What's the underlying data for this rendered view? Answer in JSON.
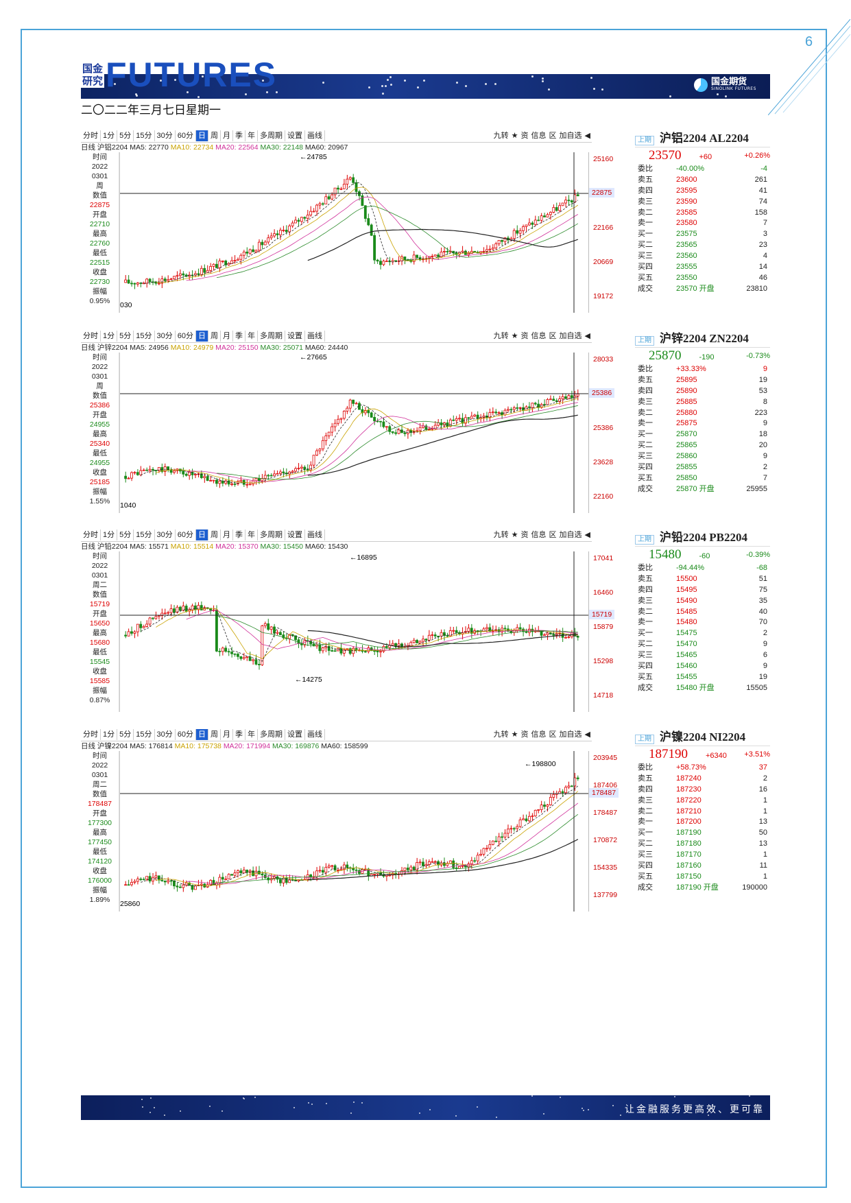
{
  "page_number": "6",
  "header": {
    "logo_cn_top": "国金",
    "logo_cn_bottom": "研究",
    "logo_en": "FUTURES",
    "brand_name": "国金期货",
    "brand_en": "SINOLINK FUTURES",
    "date": "二〇二二年三月七日星期一"
  },
  "footer": {
    "slogan": "让金融服务更高效、更可靠"
  },
  "panels": [
    {
      "toolbar": [
        "分时",
        "1分",
        "5分",
        "15分",
        "30分",
        "60分",
        "日",
        "周",
        "月",
        "季",
        "年",
        "多周期",
        "设置",
        "画线"
      ],
      "toolbar_active": 6,
      "toolbar_right": [
        "九转",
        "★",
        "资",
        "信息",
        "区",
        "加自选",
        "◀"
      ],
      "ma": {
        "name": "日线 沪铝2204",
        "ma5": "MA5: 22770",
        "ma10": "MA10: 22734",
        "ma20": "MA20: 22564",
        "ma30": "MA30: 22148",
        "ma60": "MA60: 20967"
      },
      "side": [
        {
          "t": "时间",
          "c": ""
        },
        {
          "t": "2022",
          "c": ""
        },
        {
          "t": "0301",
          "c": ""
        },
        {
          "t": "周",
          "c": ""
        },
        {
          "t": "数值",
          "c": ""
        },
        {
          "t": "22875",
          "c": "r"
        },
        {
          "t": "开盘",
          "c": ""
        },
        {
          "t": "22710",
          "c": "g"
        },
        {
          "t": "最高",
          "c": ""
        },
        {
          "t": "22760",
          "c": "g"
        },
        {
          "t": "最低",
          "c": ""
        },
        {
          "t": "22515",
          "c": "g"
        },
        {
          "t": "收盘",
          "c": ""
        },
        {
          "t": "22730",
          "c": "g"
        },
        {
          "t": "振幅",
          "c": ""
        },
        {
          "t": "0.95%",
          "c": ""
        }
      ],
      "yticks": [
        "25160",
        "23663",
        "22166",
        "20669",
        "19172"
      ],
      "ycur": "22875",
      "high_label": "24785",
      "low_label": "030",
      "quote": {
        "exchange": "上期",
        "name": "沪铝2204 AL2204",
        "price": "23570",
        "change": "+60",
        "pct": "+0.26%",
        "dir": "up",
        "rows": [
          {
            "l": "委比",
            "p": "-40.00%",
            "v": "-4"
          },
          {
            "l": "卖五",
            "p": "23600",
            "v": "261"
          },
          {
            "l": "卖四",
            "p": "23595",
            "v": "41"
          },
          {
            "l": "卖三",
            "p": "23590",
            "v": "74"
          },
          {
            "l": "卖二",
            "p": "23585",
            "v": "158"
          },
          {
            "l": "卖一",
            "p": "23580",
            "v": "7"
          },
          {
            "l": "买一",
            "p": "23575",
            "v": "3"
          },
          {
            "l": "买二",
            "p": "23565",
            "v": "23"
          },
          {
            "l": "买三",
            "p": "23560",
            "v": "4"
          },
          {
            "l": "买四",
            "p": "23555",
            "v": "14"
          },
          {
            "l": "买五",
            "p": "23550",
            "v": "46"
          },
          {
            "l": "成交",
            "p": "23570 开盘",
            "v": "23810"
          }
        ]
      }
    },
    {
      "toolbar": [
        "分时",
        "1分",
        "5分",
        "15分",
        "30分",
        "60分",
        "日",
        "周",
        "月",
        "季",
        "年",
        "多周期",
        "设置",
        "画线"
      ],
      "toolbar_active": 6,
      "toolbar_right": [
        "九转",
        "★",
        "资",
        "信息",
        "区",
        "加自选",
        "◀"
      ],
      "ma": {
        "name": "日线 沪锌2204",
        "ma5": "MA5: 24956",
        "ma10": "MA10: 24979",
        "ma20": "MA20: 25150",
        "ma30": "MA30: 25071",
        "ma60": "MA60: 24440"
      },
      "side": [
        {
          "t": "时间",
          "c": ""
        },
        {
          "t": "2022",
          "c": ""
        },
        {
          "t": "0301",
          "c": ""
        },
        {
          "t": "周",
          "c": ""
        },
        {
          "t": "数值",
          "c": ""
        },
        {
          "t": "25386",
          "c": "r"
        },
        {
          "t": "开盘",
          "c": ""
        },
        {
          "t": "24955",
          "c": "g"
        },
        {
          "t": "最高",
          "c": ""
        },
        {
          "t": "25340",
          "c": "r"
        },
        {
          "t": "最低",
          "c": ""
        },
        {
          "t": "24955",
          "c": "g"
        },
        {
          "t": "收盘",
          "c": ""
        },
        {
          "t": "25185",
          "c": "r"
        },
        {
          "t": "振幅",
          "c": ""
        },
        {
          "t": "1.55%",
          "c": ""
        }
      ],
      "yticks": [
        "28033",
        "26565",
        "25386",
        "23628",
        "22160"
      ],
      "ycur": "25386",
      "high_label": "27665",
      "low_label": "1040",
      "quote": {
        "exchange": "上期",
        "name": "沪锌2204 ZN2204",
        "price": "25870",
        "change": "-190",
        "pct": "-0.73%",
        "dir": "dn",
        "rows": [
          {
            "l": "委比",
            "p": "+33.33%",
            "v": "9"
          },
          {
            "l": "卖五",
            "p": "25895",
            "v": "19"
          },
          {
            "l": "卖四",
            "p": "25890",
            "v": "53"
          },
          {
            "l": "卖三",
            "p": "25885",
            "v": "8"
          },
          {
            "l": "卖二",
            "p": "25880",
            "v": "223"
          },
          {
            "l": "卖一",
            "p": "25875",
            "v": "9"
          },
          {
            "l": "买一",
            "p": "25870",
            "v": "18"
          },
          {
            "l": "买二",
            "p": "25865",
            "v": "20"
          },
          {
            "l": "买三",
            "p": "25860",
            "v": "9"
          },
          {
            "l": "买四",
            "p": "25855",
            "v": "2"
          },
          {
            "l": "买五",
            "p": "25850",
            "v": "7"
          },
          {
            "l": "成交",
            "p": "25870 开盘",
            "v": "25955"
          }
        ]
      }
    },
    {
      "toolbar": [
        "分时",
        "1分",
        "5分",
        "15分",
        "30分",
        "60分",
        "日",
        "周",
        "月",
        "季",
        "年",
        "多周期",
        "设置",
        "画线"
      ],
      "toolbar_active": 6,
      "toolbar_right": [
        "九转",
        "★",
        "资",
        "信息",
        "区",
        "加自选",
        "◀"
      ],
      "ma": {
        "name": "日线 沪铅2204",
        "ma5": "MA5: 15571",
        "ma10": "MA10: 15514",
        "ma20": "MA20: 15370",
        "ma30": "MA30: 15450",
        "ma60": "MA60: 15430"
      },
      "side": [
        {
          "t": "时间",
          "c": ""
        },
        {
          "t": "2022",
          "c": ""
        },
        {
          "t": "0301",
          "c": ""
        },
        {
          "t": "周二",
          "c": ""
        },
        {
          "t": "数值",
          "c": ""
        },
        {
          "t": "15719",
          "c": "r"
        },
        {
          "t": "开盘",
          "c": ""
        },
        {
          "t": "15650",
          "c": "r"
        },
        {
          "t": "最高",
          "c": ""
        },
        {
          "t": "15680",
          "c": "r"
        },
        {
          "t": "最低",
          "c": ""
        },
        {
          "t": "15545",
          "c": "g"
        },
        {
          "t": "收盘",
          "c": ""
        },
        {
          "t": "15585",
          "c": "r"
        },
        {
          "t": "振幅",
          "c": ""
        },
        {
          "t": "0.87%",
          "c": ""
        }
      ],
      "yticks": [
        "17041",
        "16460",
        "15879",
        "15298",
        "14718"
      ],
      "ycur": "15719",
      "high_label": "16895",
      "low_label": "14275",
      "quote": {
        "exchange": "上期",
        "name": "沪铅2204 PB2204",
        "price": "15480",
        "change": "-60",
        "pct": "-0.39%",
        "dir": "dn",
        "rows": [
          {
            "l": "委比",
            "p": "-94.44%",
            "v": "-68"
          },
          {
            "l": "卖五",
            "p": "15500",
            "v": "51"
          },
          {
            "l": "卖四",
            "p": "15495",
            "v": "75"
          },
          {
            "l": "卖三",
            "p": "15490",
            "v": "35"
          },
          {
            "l": "卖二",
            "p": "15485",
            "v": "40"
          },
          {
            "l": "卖一",
            "p": "15480",
            "v": "70"
          },
          {
            "l": "买一",
            "p": "15475",
            "v": "2"
          },
          {
            "l": "买二",
            "p": "15470",
            "v": "9"
          },
          {
            "l": "买三",
            "p": "15465",
            "v": "6"
          },
          {
            "l": "买四",
            "p": "15460",
            "v": "9"
          },
          {
            "l": "买五",
            "p": "15455",
            "v": "19"
          },
          {
            "l": "成交",
            "p": "15480 开盘",
            "v": "15505"
          }
        ]
      }
    },
    {
      "toolbar": [
        "分时",
        "1分",
        "5分",
        "15分",
        "30分",
        "60分",
        "日",
        "周",
        "月",
        "季",
        "年",
        "多周期",
        "设置",
        "画线"
      ],
      "toolbar_active": 6,
      "toolbar_right": [
        "九转",
        "★",
        "资",
        "信息",
        "区",
        "加自选",
        "◀"
      ],
      "ma": {
        "name": "日线 沪镍2204",
        "ma5": "MA5: 176814",
        "ma10": "MA10: 175738",
        "ma20": "MA20: 171994",
        "ma30": "MA30: 169876",
        "ma60": "MA60: 158599"
      },
      "side": [
        {
          "t": "时间",
          "c": ""
        },
        {
          "t": "2022",
          "c": ""
        },
        {
          "t": "0301",
          "c": ""
        },
        {
          "t": "周二",
          "c": ""
        },
        {
          "t": "数值",
          "c": ""
        },
        {
          "t": "178487",
          "c": "r"
        },
        {
          "t": "开盘",
          "c": ""
        },
        {
          "t": "177300",
          "c": "g"
        },
        {
          "t": "最高",
          "c": ""
        },
        {
          "t": "177450",
          "c": "g"
        },
        {
          "t": "最低",
          "c": ""
        },
        {
          "t": "174120",
          "c": "g"
        },
        {
          "t": "收盘",
          "c": ""
        },
        {
          "t": "176000",
          "c": "g"
        },
        {
          "t": "振幅",
          "c": ""
        },
        {
          "t": "1.89%",
          "c": ""
        }
      ],
      "yticks": [
        "203945",
        "187406",
        "178487",
        "170872",
        "154335",
        "137799"
      ],
      "ycur": "178487",
      "high_label": "198800",
      "low_label": "25860",
      "quote": {
        "exchange": "上期",
        "name": "沪镍2204 NI2204",
        "price": "187190",
        "change": "+6340",
        "pct": "+3.51%",
        "dir": "up",
        "rows": [
          {
            "l": "委比",
            "p": "+58.73%",
            "v": "37"
          },
          {
            "l": "卖五",
            "p": "187240",
            "v": "2"
          },
          {
            "l": "卖四",
            "p": "187230",
            "v": "16"
          },
          {
            "l": "卖三",
            "p": "187220",
            "v": "1"
          },
          {
            "l": "卖二",
            "p": "187210",
            "v": "1"
          },
          {
            "l": "卖一",
            "p": "187200",
            "v": "13"
          },
          {
            "l": "买一",
            "p": "187190",
            "v": "50"
          },
          {
            "l": "买二",
            "p": "187180",
            "v": "13"
          },
          {
            "l": "买三",
            "p": "187170",
            "v": "1"
          },
          {
            "l": "买四",
            "p": "187160",
            "v": "11"
          },
          {
            "l": "买五",
            "p": "187150",
            "v": "1"
          },
          {
            "l": "成交",
            "p": "187190 开盘",
            "v": "190000"
          }
        ]
      }
    }
  ]
}
